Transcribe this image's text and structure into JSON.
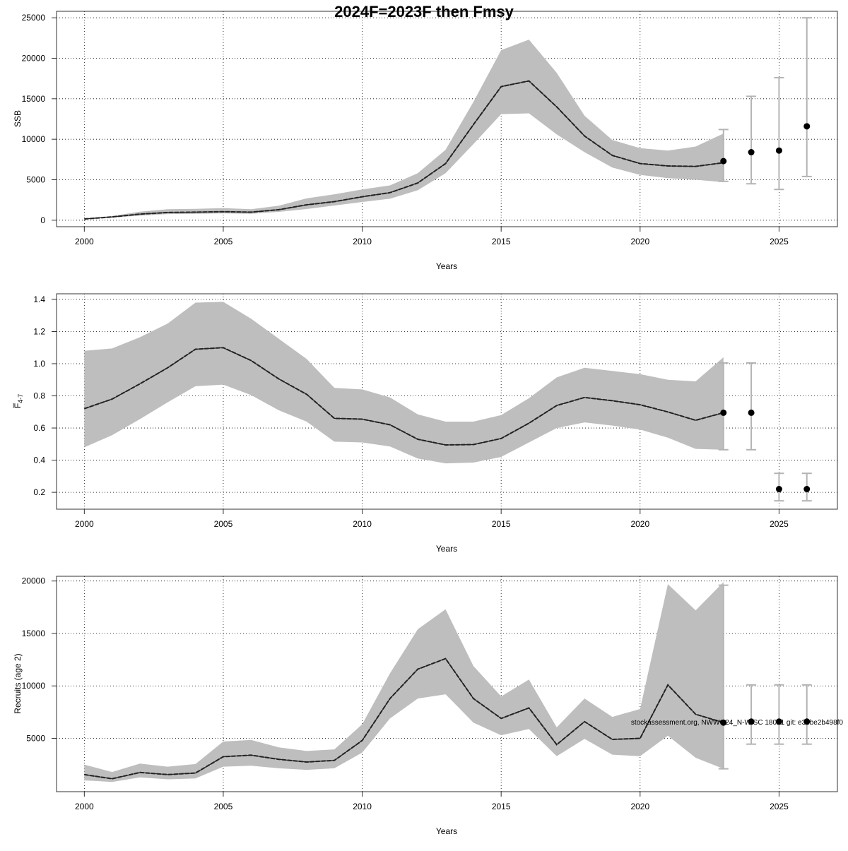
{
  "title": "2024F=2023F then Fmsy",
  "watermark": "stockassessment.org, NWWG24_N-WISC 18021 git: e33be2b498f0",
  "colors": {
    "band": "#bebebe",
    "line": "#222222",
    "ci": "#b4b4b4",
    "point": "#000000"
  },
  "chart_data": [
    {
      "type": "line",
      "ylabel": "SSB",
      "xlabel": "Years",
      "xlim": [
        1999.0,
        2027.1
      ],
      "ylim": [
        -800,
        25800
      ],
      "xticks": [
        2000,
        2005,
        2010,
        2015,
        2020,
        2025
      ],
      "yticks": [
        0,
        5000,
        10000,
        15000,
        20000,
        25000
      ],
      "grid": true,
      "x": [
        2000,
        2001,
        2002,
        2003,
        2004,
        2005,
        2006,
        2007,
        2008,
        2009,
        2010,
        2011,
        2012,
        2013,
        2014,
        2015,
        2016,
        2017,
        2018,
        2019,
        2020,
        2021,
        2022,
        2023
      ],
      "estimate": [
        150,
        400,
        750,
        950,
        1000,
        1050,
        1000,
        1300,
        1900,
        2300,
        2900,
        3400,
        4600,
        7000,
        11800,
        16500,
        17200,
        14000,
        10400,
        8000,
        7000,
        6700,
        6650,
        7100
      ],
      "lower": [
        100,
        330,
        560,
        760,
        790,
        850,
        800,
        1030,
        1380,
        1820,
        2250,
        2650,
        3700,
        5800,
        9400,
        13100,
        13200,
        10600,
        8400,
        6500,
        5600,
        5200,
        5000,
        4700
      ],
      "upper": [
        240,
        520,
        1050,
        1360,
        1400,
        1500,
        1350,
        1800,
        2700,
        3200,
        3800,
        4300,
        5800,
        8700,
        14600,
        21000,
        22300,
        18200,
        12900,
        9900,
        8900,
        8600,
        9100,
        10700
      ],
      "forecast": [
        {
          "x": 2023,
          "value": 7300,
          "low": 4800,
          "high": 11200
        },
        {
          "x": 2024,
          "value": 8400,
          "low": 4500,
          "high": 15300
        },
        {
          "x": 2025,
          "value": 8600,
          "low": 3800,
          "high": 17600
        },
        {
          "x": 2026,
          "value": 11600,
          "low": 5400,
          "high": 25000
        }
      ]
    },
    {
      "type": "line",
      "ylabel": "F̅4-7",
      "xlabel": "Years",
      "xlim": [
        1999.0,
        2027.1
      ],
      "ylim": [
        0.095,
        1.435
      ],
      "xticks": [
        2000,
        2005,
        2010,
        2015,
        2020,
        2025
      ],
      "yticks": [
        0.2,
        0.4,
        0.6,
        0.8,
        1.0,
        1.2,
        1.4
      ],
      "ytick_labels": [
        "0.2",
        "0.4",
        "0.6",
        "0.8",
        "1.0",
        "1.2",
        "1.4"
      ],
      "grid": true,
      "x": [
        2000,
        2001,
        2002,
        2003,
        2004,
        2005,
        2006,
        2007,
        2008,
        2009,
        2010,
        2011,
        2012,
        2013,
        2014,
        2015,
        2016,
        2017,
        2018,
        2019,
        2020,
        2021,
        2022,
        2023
      ],
      "estimate": [
        0.72,
        0.78,
        0.875,
        0.975,
        1.09,
        1.1,
        1.02,
        0.905,
        0.81,
        0.66,
        0.655,
        0.62,
        0.53,
        0.495,
        0.497,
        0.535,
        0.63,
        0.74,
        0.79,
        0.77,
        0.745,
        0.7,
        0.648,
        0.695
      ],
      "lower": [
        0.48,
        0.555,
        0.655,
        0.76,
        0.86,
        0.87,
        0.805,
        0.71,
        0.64,
        0.515,
        0.51,
        0.485,
        0.41,
        0.38,
        0.385,
        0.42,
        0.51,
        0.6,
        0.635,
        0.615,
        0.59,
        0.54,
        0.47,
        0.465
      ],
      "upper": [
        1.08,
        1.095,
        1.165,
        1.25,
        1.38,
        1.385,
        1.28,
        1.155,
        1.03,
        0.85,
        0.84,
        0.79,
        0.685,
        0.64,
        0.64,
        0.68,
        0.785,
        0.915,
        0.975,
        0.955,
        0.935,
        0.9,
        0.89,
        1.04
      ],
      "forecast": [
        {
          "x": 2023,
          "value": 0.695,
          "low": 0.465,
          "high": 1.005
        },
        {
          "x": 2024,
          "value": 0.695,
          "low": 0.465,
          "high": 1.005
        },
        {
          "x": 2025,
          "value": 0.22,
          "low": 0.147,
          "high": 0.318
        },
        {
          "x": 2026,
          "value": 0.22,
          "low": 0.147,
          "high": 0.318
        }
      ]
    },
    {
      "type": "line",
      "ylabel": "Recruits (age 2)",
      "xlabel": "Years",
      "xlim": [
        1999.0,
        2027.1
      ],
      "ylim": [
        -80,
        20450
      ],
      "xticks": [
        2000,
        2005,
        2010,
        2015,
        2020,
        2025
      ],
      "yticks": [
        5000,
        10000,
        15000,
        20000
      ],
      "grid": true,
      "x": [
        2000,
        2001,
        2002,
        2003,
        2004,
        2005,
        2006,
        2007,
        2008,
        2009,
        2010,
        2011,
        2012,
        2013,
        2014,
        2015,
        2016,
        2017,
        2018,
        2019,
        2020,
        2021,
        2022,
        2023
      ],
      "estimate": [
        1550,
        1150,
        1750,
        1550,
        1700,
        3250,
        3400,
        3000,
        2750,
        2900,
        4800,
        8800,
        11600,
        12600,
        8800,
        6900,
        7900,
        4400,
        6600,
        4900,
        5000,
        10100,
        7300,
        6500
      ],
      "lower": [
        1000,
        850,
        1280,
        1100,
        1180,
        2300,
        2400,
        2150,
        2000,
        2150,
        3650,
        6900,
        8800,
        9200,
        6500,
        5300,
        5900,
        3300,
        4950,
        3450,
        3300,
        5250,
        3150,
        2100
      ],
      "upper": [
        2500,
        1800,
        2600,
        2300,
        2550,
        4700,
        4850,
        4150,
        3800,
        3950,
        6350,
        11200,
        15400,
        17300,
        11900,
        9000,
        10600,
        6050,
        8800,
        7050,
        7800,
        19700,
        17200,
        19900
      ],
      "forecast": [
        {
          "x": 2023,
          "value": 6500,
          "low": 2100,
          "high": 19600
        },
        {
          "x": 2024,
          "value": 6600,
          "low": 4450,
          "high": 10100
        },
        {
          "x": 2025,
          "value": 6600,
          "low": 4450,
          "high": 10100
        },
        {
          "x": 2026,
          "value": 6600,
          "low": 4450,
          "high": 10100
        }
      ]
    }
  ]
}
